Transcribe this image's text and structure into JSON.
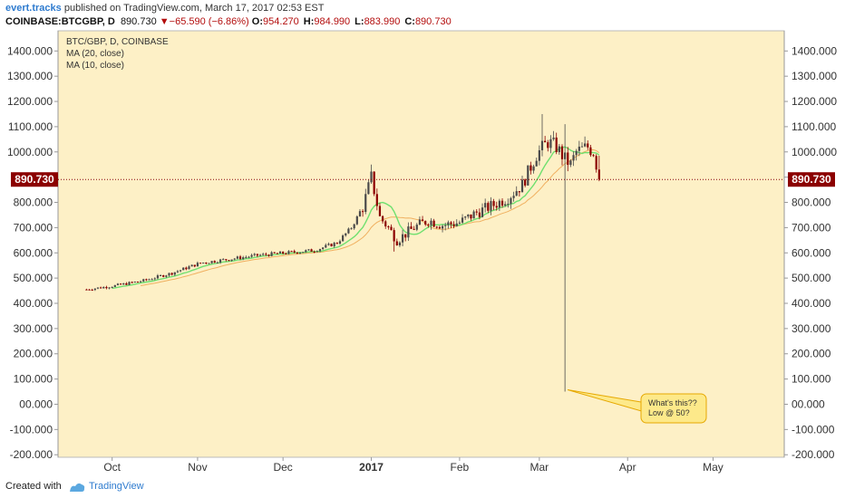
{
  "header": {
    "author": "evert.tracks",
    "published": "published on TradingView.com, March 17, 2017 02:53 EST",
    "symbol": "COINBASE:BTCGBP, D",
    "last": "890.730",
    "change_arrow": "▼",
    "change": "−65.590 (−6.86%)",
    "ohlc": [
      {
        "k": "O:",
        "v": "954.270"
      },
      {
        "k": "H:",
        "v": "984.990"
      },
      {
        "k": "L:",
        "v": "883.990"
      },
      {
        "k": "C:",
        "v": "890.730"
      }
    ]
  },
  "legend": {
    "line1": "BTC/GBP, D, COINBASE",
    "line2": "MA (20, close)",
    "line3": "MA (10, close)"
  },
  "footer": {
    "created": "Created with",
    "brand": "TradingView"
  },
  "colors": {
    "panel_bg": "#fdf0c6",
    "up": "#4a4a4a",
    "down": "#8b0000",
    "ma10": "#6fe06f",
    "ma20": "#f0b060",
    "price_label_bg": "#8b0000",
    "callout_bg": "#fde98a",
    "callout_border": "#e6a800"
  },
  "chart_data": {
    "type": "candlestick",
    "price_line": 890.73,
    "price_label": "890.730",
    "y_ticks": [
      "1400.000",
      "1300.000",
      "1200.000",
      "1100.000",
      "1000.000",
      "900.000",
      "800.000",
      "700.000",
      "600.000",
      "500.000",
      "400.000",
      "300.000",
      "200.000",
      "100.000",
      "00.000",
      "-100.000",
      "-200.000"
    ],
    "y_tick_values": [
      1400,
      1300,
      1200,
      1100,
      1000,
      900,
      800,
      700,
      600,
      500,
      400,
      300,
      200,
      100,
      0,
      -100,
      -200
    ],
    "ylim": [
      -210,
      1480
    ],
    "x_ticks": [
      {
        "label": "Oct",
        "day": 9
      },
      {
        "label": "Nov",
        "day": 39
      },
      {
        "label": "Dec",
        "day": 69
      },
      {
        "label": "2017",
        "day": 100,
        "bold": true
      },
      {
        "label": "Feb",
        "day": 131
      },
      {
        "label": "Mar",
        "day": 159
      },
      {
        "label": "Apr",
        "day": 190
      },
      {
        "label": "May",
        "day": 220
      }
    ],
    "xlim": [
      -10,
      245
    ],
    "candles": [],
    "annotation": {
      "line1": "What's this??",
      "line2": "Low @ 50?",
      "target_day": 168,
      "target_price": 50
    }
  }
}
